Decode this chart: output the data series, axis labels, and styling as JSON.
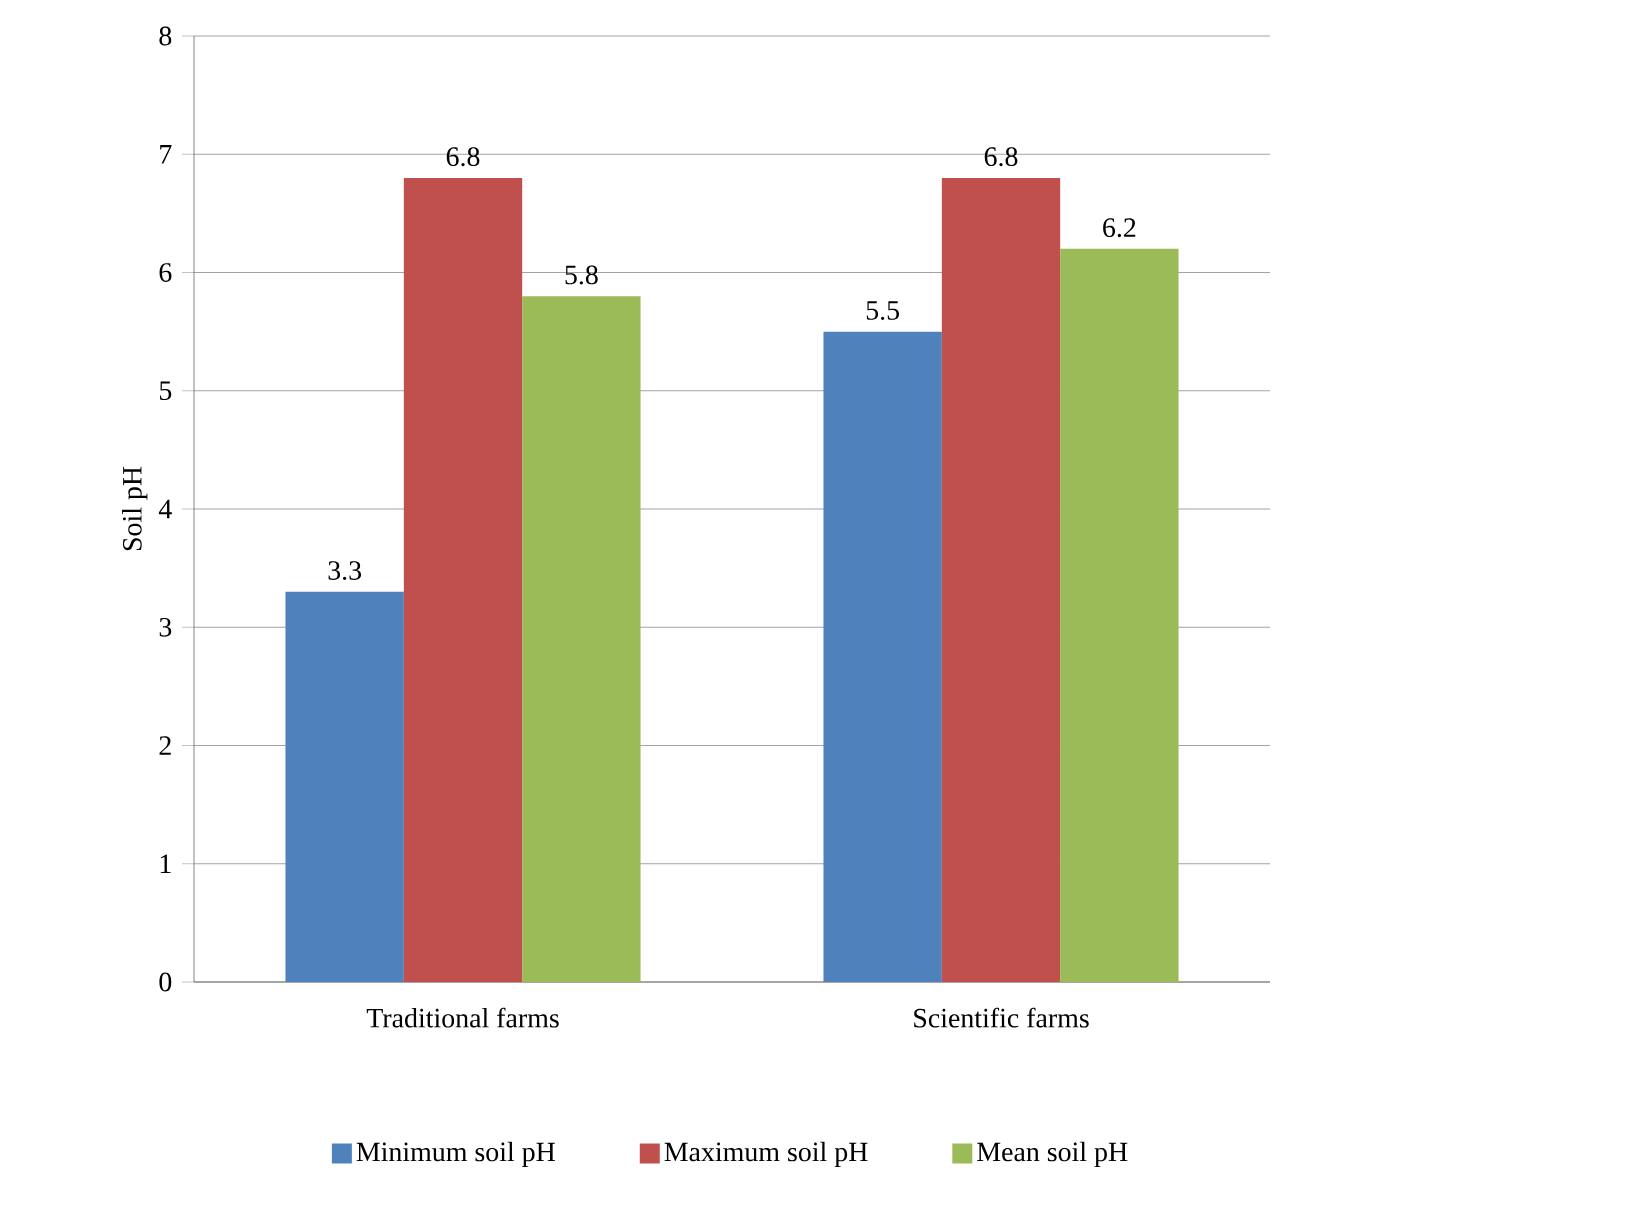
{
  "chart_data": {
    "type": "bar",
    "ylabel": "Soil pH",
    "categories": [
      "Traditional farms",
      "Scientific farms"
    ],
    "series": [
      {
        "name": "Minimum soil pH",
        "color": "#4f81bd",
        "values": [
          3.3,
          5.5
        ]
      },
      {
        "name": "Maximum soil pH",
        "color": "#c0504d",
        "values": [
          6.8,
          6.8
        ]
      },
      {
        "name": "Mean soil pH",
        "color": "#9bbb59",
        "values": [
          5.8,
          6.2
        ]
      }
    ],
    "ylim": [
      0,
      8
    ],
    "yticks": [
      0,
      1,
      2,
      3,
      4,
      5,
      6,
      7,
      8
    ],
    "grid": "y",
    "legend": "bottom",
    "data_labels": true
  }
}
